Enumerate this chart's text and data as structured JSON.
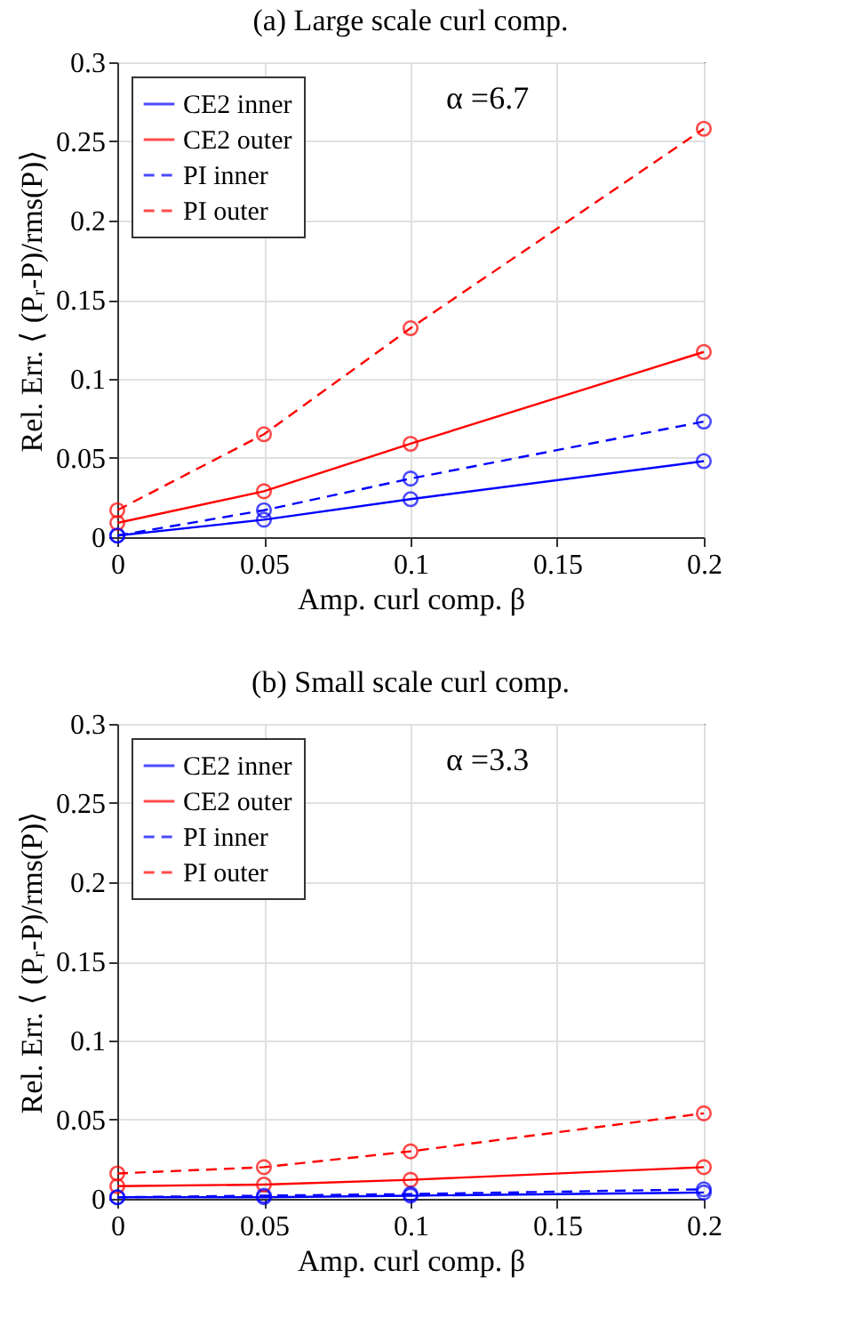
{
  "chart_data": [
    {
      "type": "line",
      "title": "(a) Large scale curl comp.",
      "xlabel": "Amp. curl comp. β",
      "ylabel": "Rel. Err. ⟨ (Pᵣ-P)/rms(P)⟩",
      "annotations": [
        "α =6.7"
      ],
      "x": [
        0,
        0.05,
        0.1,
        0.2
      ],
      "xlim": [
        0,
        0.2
      ],
      "xticks": [
        0,
        0.05,
        0.1,
        0.15,
        0.2
      ],
      "ylim": [
        0,
        0.3
      ],
      "yticks": [
        0,
        0.05,
        0.1,
        0.15,
        0.2,
        0.25,
        0.3
      ],
      "grid": true,
      "legend": "top left",
      "marker": "circle",
      "series": [
        {
          "name": "CE2 inner",
          "color": "#0000ff",
          "line_style": "solid",
          "values": [
            0.001,
            0.011,
            0.024,
            0.048
          ]
        },
        {
          "name": "CE2 outer",
          "color": "#ff0000",
          "line_style": "solid",
          "values": [
            0.009,
            0.029,
            0.059,
            0.117
          ]
        },
        {
          "name": "PI inner",
          "color": "#0000ff",
          "line_style": "dashed",
          "values": [
            0.001,
            0.017,
            0.037,
            0.073
          ]
        },
        {
          "name": "PI outer",
          "color": "#ff0000",
          "line_style": "dashed",
          "values": [
            0.017,
            0.065,
            0.132,
            0.258
          ]
        }
      ]
    },
    {
      "type": "line",
      "title": "(b) Small scale curl comp.",
      "xlabel": "Amp. curl comp. β",
      "ylabel": "Rel. Err. ⟨ (Pᵣ-P)/rms(P)⟩",
      "annotations": [
        "α =3.3"
      ],
      "x": [
        0,
        0.05,
        0.1,
        0.2
      ],
      "xlim": [
        0,
        0.2
      ],
      "xticks": [
        0,
        0.05,
        0.1,
        0.15,
        0.2
      ],
      "ylim": [
        0,
        0.3
      ],
      "yticks": [
        0,
        0.05,
        0.1,
        0.15,
        0.2,
        0.25,
        0.3
      ],
      "grid": true,
      "legend": "top left",
      "marker": "circle",
      "series": [
        {
          "name": "CE2 inner",
          "color": "#0000ff",
          "line_style": "solid",
          "values": [
            0.001,
            0.001,
            0.002,
            0.004
          ]
        },
        {
          "name": "CE2 outer",
          "color": "#ff0000",
          "line_style": "solid",
          "values": [
            0.008,
            0.009,
            0.012,
            0.02
          ]
        },
        {
          "name": "PI inner",
          "color": "#0000ff",
          "line_style": "dashed",
          "values": [
            0.001,
            0.002,
            0.003,
            0.006
          ]
        },
        {
          "name": "PI outer",
          "color": "#ff0000",
          "line_style": "dashed",
          "values": [
            0.016,
            0.02,
            0.03,
            0.054
          ]
        }
      ]
    }
  ]
}
